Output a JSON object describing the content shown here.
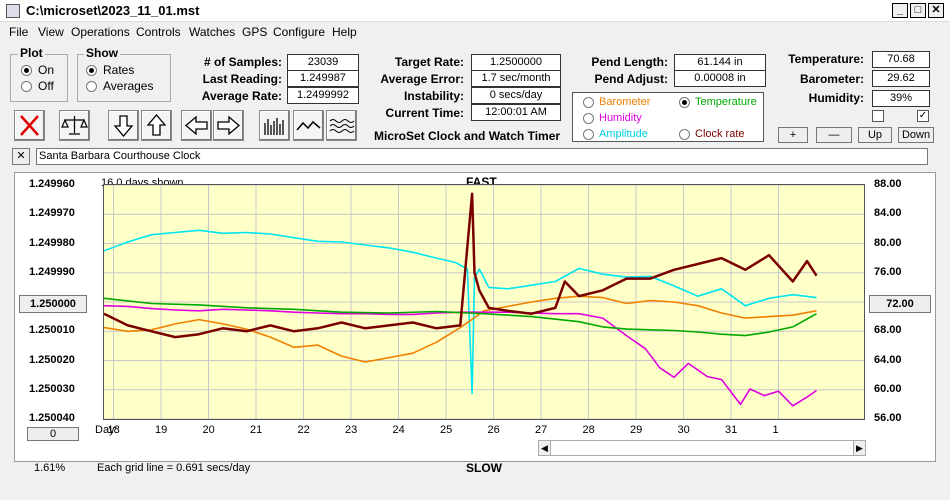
{
  "window": {
    "title": "C:\\microset\\2023_11_01.mst"
  },
  "menu": [
    "File",
    "View",
    "Operations",
    "Controls",
    "Watches",
    "GPS",
    "Configure",
    "Help"
  ],
  "plot_group": {
    "label": "Plot",
    "on": "On",
    "off": "Off",
    "selected": "On"
  },
  "show_group": {
    "label": "Show",
    "rates": "Rates",
    "averages": "Averages",
    "selected": "Rates"
  },
  "stats": {
    "samples_label": "# of Samples:",
    "samples": "23039",
    "last_reading_label": "Last Reading:",
    "last_reading": "1.249987",
    "avg_rate_label": "Average Rate:",
    "avg_rate": "1.2499992",
    "target_rate_label": "Target Rate:",
    "target_rate": "1.2500000",
    "avg_error_label": "Average Error:",
    "avg_error": "1.7 sec/month",
    "instability_label": "Instability:",
    "instability": "0 secs/day",
    "current_time_label": "Current Time:",
    "current_time": "12:00:01 AM",
    "pend_length_label": "Pend Length:",
    "pend_length": "61.144 in",
    "pend_adjust_label": "Pend Adjust:",
    "pend_adjust": "0.00008 in",
    "temperature_label": "Temperature:",
    "temperature": "70.68",
    "barometer_label": "Barometer:",
    "barometer": "29.62",
    "humidity_label": "Humidity:",
    "humidity": "39%"
  },
  "app_caption": "MicroSet Clock and Watch Timer",
  "series_select": {
    "barometer": "Barometer",
    "temperature": "Temperature",
    "humidity": "Humidity",
    "amplitude": "Amplitude",
    "clock_rate": "Clock rate",
    "selected": "Temperature"
  },
  "right_buttons": {
    "plus": "+",
    "minus": "—",
    "up": "Up",
    "down": "Down"
  },
  "checkboxes": {
    "first_checked": false,
    "second_checked": true,
    "check_mark": "✓"
  },
  "clock_name": "Santa Barbara Courthouse Clock",
  "close_x": "✕",
  "graph": {
    "days_shown": "16.0 days shown",
    "top_label": "FAST",
    "bottom_label": "SLOW",
    "day_label": "Day:",
    "grid_note": "Each grid line = 0.691 secs/day",
    "percent": "1.61%",
    "left_button": "1.250000",
    "left_zero_button": "0",
    "right_button": "72.00"
  },
  "chart_data": {
    "type": "line",
    "y_left_ticks": [
      "1.249960",
      "1.249970",
      "1.249980",
      "1.249990",
      "1.250000",
      "1.250010",
      "1.250020",
      "1.250030",
      "1.250040"
    ],
    "y_right_ticks": [
      "88.00",
      "84.00",
      "80.00",
      "76.00",
      "72.00",
      "68.00",
      "64.00",
      "60.00",
      "56.00"
    ],
    "x_ticks": [
      "18",
      "19",
      "20",
      "21",
      "22",
      "23",
      "24",
      "25",
      "26",
      "27",
      "28",
      "29",
      "30",
      "31",
      "1"
    ],
    "x_range": [
      17.8,
      33.8
    ],
    "ylim_left": [
      1.25004,
      1.24996
    ],
    "ylim_right": [
      56,
      88
    ],
    "grid": true,
    "series": [
      {
        "name": "Clock rate",
        "color": "#7a0000",
        "axis": "left",
        "x": [
          17.8,
          18.3,
          18.8,
          19.3,
          19.8,
          20.3,
          20.8,
          21.3,
          21.8,
          22.3,
          22.8,
          23.3,
          23.8,
          24.3,
          24.8,
          25.3,
          25.55,
          25.6,
          25.7,
          25.9,
          26.3,
          26.8,
          27.3,
          27.5,
          27.8,
          28.3,
          28.8,
          29.3,
          29.8,
          30.3,
          30.8,
          31.3,
          31.6,
          31.8,
          32.3,
          32.6,
          32.8
        ],
        "y": [
          1.250004,
          1.250008,
          1.25001,
          1.250012,
          1.250011,
          1.250009,
          1.25001,
          1.250008,
          1.25001,
          1.250009,
          1.250007,
          1.250009,
          1.250008,
          1.250007,
          1.250009,
          1.250008,
          1.249963,
          1.24999,
          1.249996,
          1.250002,
          1.250003,
          1.250004,
          1.250002,
          1.249993,
          1.249998,
          1.249996,
          1.249992,
          1.249992,
          1.249989,
          1.249987,
          1.249985,
          1.249989,
          1.249986,
          1.249984,
          1.249993,
          1.249986,
          1.249991
        ]
      },
      {
        "name": "Temperature",
        "color": "#00a800",
        "axis": "right",
        "x": [
          17.8,
          18.8,
          19.8,
          20.8,
          21.8,
          22.8,
          23.8,
          24.8,
          25.8,
          26.8,
          27.8,
          28.3,
          28.8,
          29.3,
          29.8,
          30.3,
          30.8,
          31.3,
          31.8,
          32.3,
          32.8
        ],
        "y": [
          72.5,
          71.8,
          71.6,
          71.2,
          71.0,
          70.6,
          70.5,
          70.7,
          70.4,
          70.0,
          69.3,
          68.6,
          68.3,
          68.2,
          68.1,
          67.9,
          67.6,
          67.4,
          67.9,
          68.6,
          70.4
        ]
      },
      {
        "name": "Humidity",
        "color": "#e000e0",
        "axis": "right",
        "x": [
          17.8,
          18.3,
          18.8,
          19.3,
          19.8,
          20.3,
          20.8,
          21.3,
          21.8,
          22.3,
          22.8,
          23.3,
          23.8,
          24.3,
          24.8,
          25.3,
          25.8,
          26.3,
          26.8,
          27.3,
          27.8,
          28.3,
          28.8,
          29.2,
          29.5,
          29.8,
          30.1,
          30.5,
          30.8,
          31.2,
          31.4,
          31.7,
          32.0,
          32.3,
          32.6,
          32.8
        ],
        "y": [
          71.5,
          71.4,
          71.1,
          70.9,
          70.8,
          71.0,
          70.9,
          70.8,
          70.6,
          70.5,
          70.4,
          70.4,
          70.3,
          70.3,
          70.5,
          70.6,
          70.6,
          70.6,
          70.5,
          70.4,
          70.4,
          69.8,
          67.4,
          65.6,
          63.0,
          61.7,
          63.6,
          61.8,
          61.4,
          58.0,
          60.1,
          59.2,
          59.8,
          57.8,
          59.0,
          59.9
        ]
      },
      {
        "name": "Barometer",
        "color": "#f08000",
        "axis": "right",
        "x": [
          17.8,
          18.3,
          18.8,
          19.3,
          19.8,
          20.3,
          20.8,
          21.3,
          21.8,
          22.3,
          22.8,
          23.3,
          23.8,
          24.3,
          24.8,
          25.3,
          25.8,
          26.3,
          26.8,
          27.3,
          27.8,
          28.3,
          28.8,
          29.3,
          29.8,
          30.3,
          30.8,
          31.3,
          31.8,
          32.3,
          32.8
        ],
        "y": [
          68.5,
          68.0,
          68.2,
          69.0,
          69.6,
          69.0,
          68.3,
          67.2,
          65.8,
          66.1,
          64.6,
          63.8,
          64.4,
          65.0,
          66.5,
          68.5,
          70.8,
          71.4,
          72.0,
          72.5,
          72.8,
          72.6,
          71.8,
          72.2,
          72.0,
          71.5,
          70.5,
          69.8,
          70.0,
          70.2,
          70.8
        ]
      },
      {
        "name": "Amplitude",
        "color": "#00e5f0",
        "axis": "right",
        "x": [
          17.8,
          18.3,
          18.8,
          19.3,
          19.8,
          20.3,
          20.8,
          21.3,
          21.8,
          22.3,
          22.8,
          23.3,
          23.8,
          24.3,
          24.8,
          25.2,
          25.45,
          25.55,
          25.6,
          25.7,
          25.9,
          26.3,
          26.8,
          27.3,
          27.8,
          28.3,
          28.8,
          29.3,
          29.8,
          30.3,
          30.8,
          31.3,
          31.8,
          32.3,
          32.8
        ],
        "y": [
          79.0,
          80.2,
          81.2,
          81.5,
          81.8,
          81.4,
          81.5,
          81.3,
          80.8,
          80.3,
          80.2,
          79.8,
          79.4,
          78.8,
          78.0,
          77.4,
          76.5,
          59.5,
          75.3,
          76.5,
          74.0,
          73.8,
          74.3,
          74.8,
          76.6,
          75.8,
          75.4,
          75.5,
          74.2,
          72.8,
          73.8,
          71.5,
          72.5,
          73.0,
          72.6
        ]
      }
    ]
  }
}
